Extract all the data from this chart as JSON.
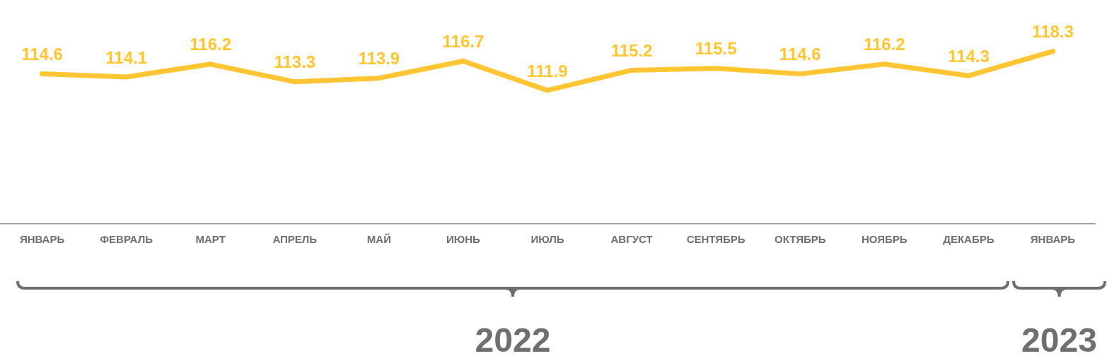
{
  "chart_data": {
    "type": "line",
    "categories": [
      "ЯНВАРЬ",
      "ФЕВРАЛЬ",
      "МАРТ",
      "АПРЕЛЬ",
      "МАЙ",
      "ИЮНЬ",
      "ИЮЛЬ",
      "АВГУСТ",
      "СЕНТЯБРЬ",
      "ОКТЯБРЬ",
      "НОЯБРЬ",
      "ДЕКАБРЬ",
      "ЯНВАРЬ"
    ],
    "series": [
      {
        "color": "#ffc533",
        "values": [
          114.6,
          114.1,
          116.2,
          113.3,
          113.9,
          116.7,
          111.9,
          115.2,
          115.5,
          114.6,
          116.2,
          114.3,
          118.3
        ]
      }
    ],
    "data_labels": true,
    "tick_labels": "x",
    "legend": false,
    "annotations": [
      "2022",
      "2023"
    ]
  }
}
